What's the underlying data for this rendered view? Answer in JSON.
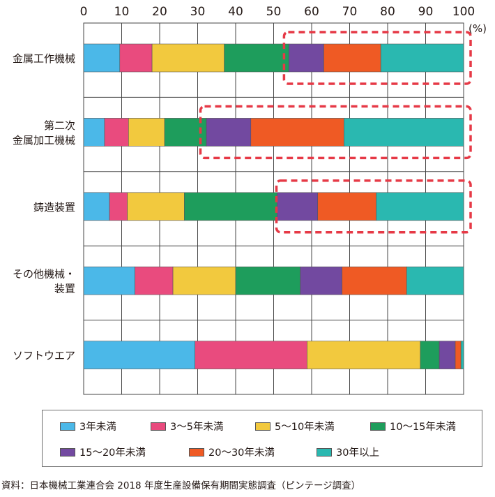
{
  "chart_data": {
    "type": "bar",
    "orientation": "horizontal",
    "stacked": true,
    "unit_label": "(%)",
    "xlim": [
      0,
      100
    ],
    "x_ticks": [
      "0",
      "10",
      "20",
      "30",
      "40",
      "50",
      "60",
      "70",
      "80",
      "90",
      "100"
    ],
    "grid": true,
    "legend_position": "bottom",
    "categories": [
      [
        "金属工作機械"
      ],
      [
        "第二次",
        "金属加工機械"
      ],
      [
        "鋳造装置"
      ],
      [
        "その他機械・",
        "装置"
      ],
      [
        "ソフトウエア"
      ]
    ],
    "series": [
      {
        "name": "3年未満",
        "color": "#4bb8e8",
        "values": [
          9.5,
          5.5,
          6.8,
          13.5,
          29.3
        ]
      },
      {
        "name": "3〜5年未満",
        "color": "#e94b7e",
        "values": [
          8.5,
          6.3,
          4.7,
          10.0,
          29.5
        ]
      },
      {
        "name": "5〜10年未満",
        "color": "#f2c93e",
        "values": [
          19.0,
          9.5,
          15.0,
          16.5,
          29.8
        ]
      },
      {
        "name": "10〜15年未満",
        "color": "#1e9d5c",
        "values": [
          17.0,
          11.0,
          24.4,
          17.0,
          5.0
        ]
      },
      {
        "name": "15〜20年未満",
        "color": "#7249a0",
        "values": [
          9.2,
          11.7,
          10.7,
          11.0,
          4.2
        ]
      },
      {
        "name": "20〜30年未満",
        "color": "#ef5a24",
        "values": [
          15.0,
          24.5,
          15.4,
          17.0,
          1.5
        ]
      },
      {
        "name": "30年以上",
        "color": "#2ab8b0",
        "values": [
          21.8,
          31.5,
          23.0,
          15.0,
          0.7
        ]
      }
    ],
    "highlight_color": "#e63946",
    "highlights": [
      {
        "category_index": 0,
        "from": 52,
        "to": 100
      },
      {
        "category_index": 1,
        "from": 30,
        "to": 100
      },
      {
        "category_index": 2,
        "from": 50,
        "to": 100
      }
    ]
  },
  "source_note": "資料：日本機械工業連合会 2018 年度生産設備保有期間実態調査（ピンテージ調査）"
}
